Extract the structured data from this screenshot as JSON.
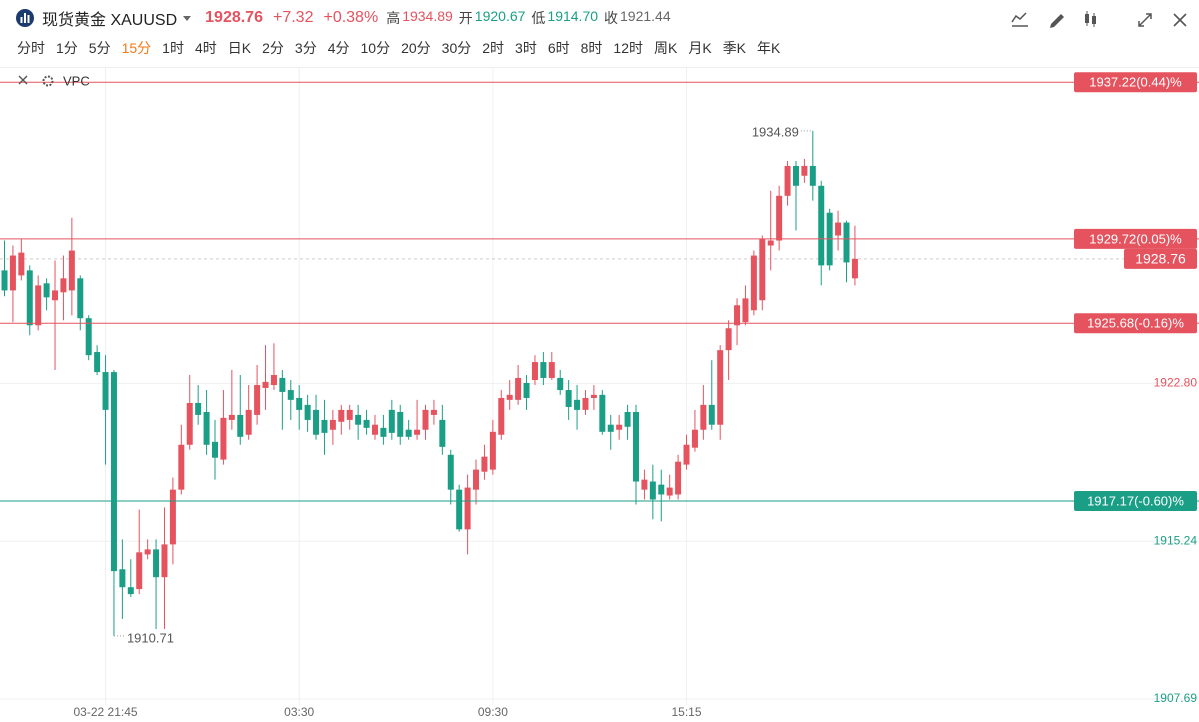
{
  "header": {
    "symbol": "现货黄金 XAUUSD",
    "change": "+7.32",
    "change_pct": "+0.38%",
    "stats": [
      {
        "label": "高",
        "value": 1934.89
      },
      {
        "label": "开",
        "value": 1920.67
      },
      {
        "label": "低",
        "value": {
          "value": 1914.7,
          "label": "1914.70"
        }
      },
      {
        "label": "收",
        "value": 1921.44
      }
    ]
  },
  "timeframes": [
    "分时",
    "1分",
    "5分",
    "15分",
    "1时",
    "4时",
    "日K",
    "2分",
    "3分",
    "4分",
    "10分",
    "20分",
    "30分",
    "2时",
    "3时",
    "6时",
    "8时",
    "12时",
    "周K",
    "月K",
    "季K",
    "年K"
  ],
  "selected_timeframe": 3,
  "indicator": "VPC",
  "chart_data": {
    "type": "candlestick",
    "categories": [
      null,
      null,
      null,
      null,
      null,
      null,
      null,
      null,
      null,
      null,
      null,
      null,
      "03-22 21:45",
      null,
      null,
      null,
      null,
      null,
      null,
      null,
      null,
      null,
      null,
      null,
      null,
      null,
      null,
      null,
      null,
      null,
      null,
      null,
      null,
      null,
      null,
      "03:30",
      null,
      null,
      null,
      null,
      null,
      null,
      null,
      null,
      null,
      null,
      null,
      null,
      null,
      null,
      null,
      null,
      null,
      null,
      null,
      null,
      null,
      null,
      "09:30",
      null,
      null,
      null,
      null,
      null,
      null,
      null,
      null,
      null,
      null,
      null,
      null,
      null,
      null,
      null,
      null,
      null,
      null,
      null,
      null,
      null,
      null,
      "15:15",
      null,
      null,
      null,
      null,
      null,
      null,
      null,
      null,
      null,
      null,
      null,
      null,
      null,
      null,
      null,
      null,
      null,
      null,
      null,
      null
    ],
    "candles": [
      [
        1928.21,
        1929.64,
        1926.97,
        1927.25
      ],
      [
        1927.25,
        1929.4,
        1925.73,
        1928.92
      ],
      [
        1927.97,
        1929.73,
        1927.73,
        1929.06
      ],
      [
        1928.21,
        1928.45,
        1925.1,
        1925.58
      ],
      [
        1925.58,
        1927.97,
        1925.34,
        1927.49
      ],
      [
        1927.59,
        1927.83,
        1926.3,
        1926.92
      ],
      [
        1926.78,
        1928.68,
        1923.44,
        1927.25
      ],
      [
        1927.16,
        1928.92,
        1925.82,
        1927.83
      ],
      [
        1927.25,
        1930.73,
        1926.06,
        1929.16
      ],
      [
        1927.83,
        1927.97,
        1925.34,
        1925.92
      ],
      [
        1925.92,
        1926.06,
        1923.91,
        1924.15
      ],
      [
        1924.3,
        1924.63,
        1923.2,
        1923.34
      ],
      [
        1923.34,
        1924.15,
        1918.91,
        1921.53
      ],
      [
        1923.34,
        1923.44,
        1910.71,
        1913.81
      ],
      [
        1913.9,
        1915.33,
        1911.52,
        1913.04
      ],
      [
        1913.04,
        1914.38,
        1912.57,
        1912.71
      ],
      [
        1912.95,
        1916.76,
        1912.71,
        1914.71
      ],
      [
        1914.61,
        1915.33,
        1914.38,
        1914.85
      ],
      [
        1914.85,
        1915.33,
        1911.04,
        1913.52
      ],
      [
        1913.52,
        1916.86,
        1911.04,
        1915.09
      ],
      [
        1915.09,
        1918.29,
        1914.14,
        1917.71
      ],
      [
        1917.71,
        1920.82,
        1917.48,
        1919.86
      ],
      [
        1919.86,
        1923.2,
        1919.62,
        1921.86
      ],
      [
        1921.86,
        1922.72,
        1920.82,
        1921.29
      ],
      [
        1921.43,
        1922.48,
        1919.38,
        1919.86
      ],
      [
        1920.0,
        1921.05,
        1918.19,
        1919.24
      ],
      [
        1919.15,
        1922.48,
        1918.91,
        1921.15
      ],
      [
        1921.05,
        1923.44,
        1920.58,
        1921.29
      ],
      [
        1921.29,
        1923.2,
        1919.86,
        1920.24
      ],
      [
        1920.34,
        1922.72,
        1920.1,
        1921.53
      ],
      [
        1921.29,
        1923.68,
        1920.82,
        1922.72
      ],
      [
        1922.58,
        1924.63,
        1921.53,
        1922.87
      ],
      [
        1922.72,
        1924.72,
        1922.48,
        1923.2
      ],
      [
        1923.06,
        1923.44,
        1920.58,
        1922.39
      ],
      [
        1922.48,
        1922.96,
        1921.05,
        1922.01
      ],
      [
        1922.1,
        1922.72,
        1920.58,
        1921.53
      ],
      [
        1921.77,
        1922.25,
        1920.48,
        1921.05
      ],
      [
        1921.53,
        1922.25,
        1920.1,
        1920.34
      ],
      [
        1921.05,
        1922.01,
        1919.38,
        1920.43
      ],
      [
        1920.58,
        1921.53,
        1919.86,
        1921.05
      ],
      [
        1920.96,
        1921.77,
        1920.34,
        1921.53
      ],
      [
        1921.05,
        1921.77,
        1920.58,
        1921.53
      ],
      [
        1921.29,
        1921.77,
        1920.1,
        1920.82
      ],
      [
        1921.05,
        1921.53,
        1920.34,
        1920.67
      ],
      [
        1920.34,
        1921.29,
        1920.1,
        1920.82
      ],
      [
        1920.67,
        1921.29,
        1919.86,
        1920.24
      ],
      [
        1921.53,
        1922.01,
        1920.1,
        1920.43
      ],
      [
        1921.43,
        1921.77,
        1919.86,
        1920.24
      ],
      [
        1920.58,
        1921.05,
        1920.1,
        1920.24
      ],
      [
        1920.34,
        1922.01,
        1920.1,
        1920.58
      ],
      [
        1920.58,
        1921.77,
        1920.1,
        1921.53
      ],
      [
        1921.29,
        1922.01,
        1920.82,
        1921.53
      ],
      [
        1921.05,
        1921.77,
        1919.38,
        1919.76
      ],
      [
        1919.38,
        1919.62,
        1917.0,
        1917.71
      ],
      [
        1917.71,
        1917.95,
        1915.7,
        1915.81
      ],
      [
        1915.81,
        1918.43,
        1914.61,
        1917.81
      ],
      [
        1917.71,
        1919.15,
        1917.0,
        1918.67
      ],
      [
        1918.57,
        1919.86,
        1918.19,
        1919.29
      ],
      [
        1918.67,
        1921.05,
        1918.43,
        1920.48
      ],
      [
        1920.34,
        1922.48,
        1920.1,
        1922.1
      ],
      [
        1922.01,
        1922.96,
        1921.53,
        1922.25
      ],
      [
        1922.01,
        1923.68,
        1921.77,
        1923.06
      ],
      [
        1922.82,
        1923.2,
        1921.53,
        1922.1
      ],
      [
        1922.96,
        1924.15,
        1922.72,
        1923.82
      ],
      [
        1923.82,
        1924.3,
        1922.72,
        1923.06
      ],
      [
        1923.06,
        1924.3,
        1922.96,
        1923.82
      ],
      [
        1923.06,
        1923.44,
        1922.25,
        1922.48
      ],
      [
        1922.48,
        1922.96,
        1921.05,
        1921.67
      ],
      [
        1922.01,
        1922.72,
        1920.58,
        1921.53
      ],
      [
        1921.53,
        1922.48,
        1921.29,
        1922.1
      ],
      [
        1922.1,
        1922.72,
        1921.53,
        1922.25
      ],
      [
        1922.25,
        1922.48,
        1920.34,
        1920.48
      ],
      [
        1920.82,
        1921.29,
        1919.62,
        1920.48
      ],
      [
        1920.58,
        1921.29,
        1920.1,
        1920.82
      ],
      [
        1921.43,
        1921.77,
        1920.1,
        1920.72
      ],
      [
        1921.43,
        1921.77,
        1917.0,
        1918.1
      ],
      [
        1917.71,
        1918.67,
        1917.24,
        1918.19
      ],
      [
        1918.1,
        1918.91,
        1916.29,
        1917.24
      ],
      [
        1917.95,
        1918.67,
        1916.19,
        1917.48
      ],
      [
        1917.43,
        1918.43,
        1917.24,
        1917.81
      ],
      [
        1917.48,
        1919.38,
        1917.24,
        1919.05
      ],
      [
        1918.91,
        1920.34,
        1918.67,
        1919.86
      ],
      [
        1919.72,
        1921.53,
        1919.53,
        1920.58
      ],
      [
        1920.58,
        1922.72,
        1920.1,
        1921.77
      ],
      [
        1921.77,
        1923.91,
        1920.58,
        1920.82
      ],
      [
        1920.82,
        1924.63,
        1920.1,
        1924.39
      ],
      [
        1924.39,
        1925.82,
        1922.96,
        1925.44
      ],
      [
        1925.58,
        1926.87,
        1924.63,
        1926.54
      ],
      [
        1925.73,
        1927.49,
        1925.58,
        1926.87
      ],
      [
        1926.3,
        1929.16,
        1926.06,
        1928.92
      ],
      [
        1926.78,
        1929.88,
        1926.3,
        1929.73
      ],
      [
        1929.4,
        1932.02,
        1928.21,
        1929.64
      ],
      [
        1929.64,
        1932.26,
        1929.16,
        1931.78
      ],
      [
        1931.78,
        1933.45,
        1931.31,
        1933.21
      ],
      [
        1933.21,
        1933.45,
        1930.12,
        1932.26
      ],
      [
        1932.74,
        1933.55,
        1932.4,
        1933.21
      ],
      [
        1933.21,
        1934.89,
        1931.55,
        1932.26
      ],
      [
        1932.26,
        1932.5,
        1927.49,
        1928.45
      ],
      [
        1930.97,
        1931.16,
        1928.21,
        1928.45
      ],
      [
        1929.88,
        1931.07,
        1929.16,
        1930.5
      ],
      [
        1930.5,
        1930.59,
        1927.64,
        1928.59
      ],
      [
        1927.83,
        1930.35,
        1927.49,
        1928.76
      ]
    ],
    "ylim": [
      1907.4,
      1937.9
    ],
    "yticks": [
      1907.69,
      1915.24,
      {
        "value": 1922.8,
        "label": "1922.80"
      }
    ],
    "grid": true,
    "up_color": "#e5535f",
    "down_color": "#1a9f86",
    "levels": [
      {
        "value": 1937.22,
        "label": "1937.22(0.44)%"
      },
      {
        "value": 1929.72,
        "label": "1929.72(0.05)%"
      },
      {
        "value": 1925.68,
        "label": "1925.68(-0.16)%"
      },
      {
        "value": 1917.17,
        "label": "1917.17(-0.60)%"
      }
    ],
    "last_price": 1928.76,
    "annotations": {
      "high": "1934.89",
      "low": "1910.71"
    }
  }
}
